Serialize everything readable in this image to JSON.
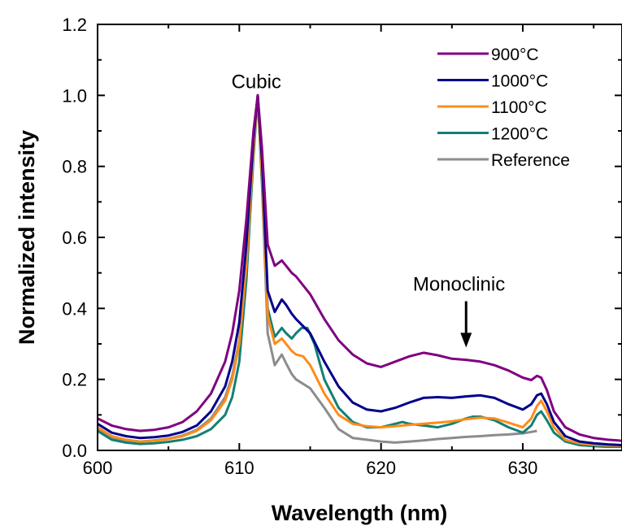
{
  "chart_data": {
    "type": "line",
    "title": "",
    "xlabel": "Wavelength (nm)",
    "ylabel": "Normalized intensity",
    "xlim": [
      600,
      637
    ],
    "ylim": [
      0.0,
      1.2
    ],
    "x_ticks": [
      "600",
      "610",
      "620",
      "630"
    ],
    "y_ticks": [
      "0.0",
      "0.2",
      "0.4",
      "0.6",
      "0.8",
      "1.0",
      "1.2"
    ],
    "grid": false,
    "legend_position": "top-right",
    "annotations": [
      {
        "text": "Cubic",
        "x": 611.2,
        "y": 1.02,
        "arrow": false
      },
      {
        "text": "Monoclinic",
        "x": 625.5,
        "y": 0.45,
        "arrow": true,
        "arrow_to_y": 0.29
      }
    ],
    "series": [
      {
        "name": "900°C",
        "color": "#800080",
        "x": [
          600,
          601,
          602,
          603,
          604,
          605,
          606,
          607,
          608,
          609,
          609.5,
          610,
          610.5,
          611,
          611.3,
          611.6,
          612,
          612.5,
          613,
          613.3,
          613.7,
          614,
          615,
          616,
          617,
          618,
          619,
          620,
          621,
          622,
          623,
          624,
          625,
          626,
          627,
          628,
          629,
          630,
          630.6,
          631,
          631.3,
          631.7,
          632.2,
          633,
          634,
          635,
          636,
          637
        ],
        "y": [
          0.09,
          0.07,
          0.06,
          0.055,
          0.058,
          0.065,
          0.08,
          0.11,
          0.16,
          0.25,
          0.33,
          0.45,
          0.65,
          0.9,
          1.0,
          0.85,
          0.58,
          0.52,
          0.535,
          0.52,
          0.5,
          0.49,
          0.44,
          0.37,
          0.31,
          0.27,
          0.245,
          0.235,
          0.25,
          0.265,
          0.275,
          0.268,
          0.258,
          0.255,
          0.25,
          0.24,
          0.225,
          0.205,
          0.198,
          0.21,
          0.205,
          0.17,
          0.11,
          0.065,
          0.045,
          0.035,
          0.03,
          0.027
        ]
      },
      {
        "name": "1000°C",
        "color": "#00008B",
        "x": [
          600,
          601,
          602,
          603,
          604,
          605,
          606,
          607,
          608,
          609,
          609.5,
          610,
          610.5,
          611,
          611.3,
          611.6,
          612,
          612.5,
          613,
          613.3,
          613.7,
          614,
          615,
          616,
          617,
          618,
          619,
          620,
          621,
          622,
          623,
          624,
          625,
          626,
          627,
          628,
          629,
          630,
          630.6,
          631,
          631.3,
          631.7,
          632.2,
          633,
          634,
          635,
          636,
          637
        ],
        "y": [
          0.075,
          0.05,
          0.04,
          0.035,
          0.037,
          0.042,
          0.052,
          0.07,
          0.11,
          0.18,
          0.25,
          0.36,
          0.58,
          0.88,
          1.0,
          0.82,
          0.45,
          0.39,
          0.425,
          0.41,
          0.385,
          0.37,
          0.33,
          0.25,
          0.18,
          0.135,
          0.115,
          0.11,
          0.12,
          0.135,
          0.148,
          0.15,
          0.148,
          0.152,
          0.155,
          0.148,
          0.13,
          0.115,
          0.13,
          0.155,
          0.16,
          0.13,
          0.08,
          0.04,
          0.025,
          0.02,
          0.017,
          0.015
        ]
      },
      {
        "name": "1100°C",
        "color": "#FF8C1A",
        "x": [
          600,
          601,
          602,
          603,
          604,
          605,
          606,
          607,
          608,
          609,
          609.5,
          610,
          610.5,
          611,
          611.3,
          611.6,
          612,
          612.5,
          613,
          613.3,
          613.7,
          614,
          614.5,
          615,
          616,
          617,
          618,
          619,
          620,
          621,
          622,
          623,
          624,
          625,
          626,
          627,
          628,
          629,
          630,
          630.6,
          631,
          631.3,
          631.7,
          632.2,
          633,
          634,
          635,
          636,
          637
        ],
        "y": [
          0.065,
          0.04,
          0.03,
          0.025,
          0.027,
          0.032,
          0.04,
          0.055,
          0.085,
          0.14,
          0.2,
          0.3,
          0.52,
          0.85,
          1.0,
          0.78,
          0.38,
          0.3,
          0.315,
          0.3,
          0.28,
          0.27,
          0.265,
          0.24,
          0.16,
          0.1,
          0.075,
          0.068,
          0.065,
          0.068,
          0.072,
          0.075,
          0.078,
          0.082,
          0.088,
          0.092,
          0.09,
          0.078,
          0.065,
          0.09,
          0.125,
          0.14,
          0.11,
          0.065,
          0.03,
          0.02,
          0.016,
          0.014,
          0.013
        ]
      },
      {
        "name": "1200°C",
        "color": "#138075",
        "x": [
          600,
          601,
          602,
          603,
          604,
          605,
          606,
          607,
          608,
          609,
          609.5,
          610,
          610.5,
          611,
          611.3,
          611.6,
          612,
          612.5,
          613,
          613.3,
          613.7,
          614,
          614.4,
          614.8,
          615.3,
          616,
          617,
          618,
          619,
          620,
          621,
          621.5,
          622,
          623,
          624,
          625,
          626,
          626.5,
          627,
          628,
          629,
          630,
          630.6,
          631,
          631.3,
          631.7,
          632.2,
          633,
          634,
          635,
          636,
          637
        ],
        "y": [
          0.055,
          0.03,
          0.022,
          0.018,
          0.02,
          0.024,
          0.03,
          0.04,
          0.06,
          0.1,
          0.15,
          0.25,
          0.48,
          0.83,
          1.0,
          0.76,
          0.4,
          0.32,
          0.345,
          0.33,
          0.315,
          0.33,
          0.345,
          0.345,
          0.3,
          0.2,
          0.12,
          0.08,
          0.065,
          0.065,
          0.075,
          0.08,
          0.075,
          0.07,
          0.065,
          0.075,
          0.09,
          0.095,
          0.095,
          0.085,
          0.065,
          0.05,
          0.07,
          0.1,
          0.11,
          0.085,
          0.05,
          0.025,
          0.015,
          0.012,
          0.01,
          0.01
        ]
      },
      {
        "name": "Reference",
        "color": "#8C8C8C",
        "x": [
          600,
          601,
          602,
          603,
          604,
          605,
          606,
          607,
          608,
          609,
          609.5,
          610,
          610.5,
          611,
          611.3,
          611.6,
          612,
          612.5,
          613,
          613.3,
          613.7,
          614,
          615,
          616,
          617,
          618,
          619,
          620,
          621,
          622,
          623,
          624,
          625,
          626,
          627,
          628,
          629,
          630,
          630.6,
          631
        ],
        "y": [
          0.06,
          0.035,
          0.028,
          0.025,
          0.028,
          0.033,
          0.042,
          0.058,
          0.09,
          0.15,
          0.21,
          0.31,
          0.53,
          0.86,
          1.0,
          0.75,
          0.33,
          0.24,
          0.27,
          0.245,
          0.215,
          0.2,
          0.175,
          0.12,
          0.06,
          0.035,
          0.03,
          0.025,
          0.022,
          0.025,
          0.028,
          0.032,
          0.035,
          0.038,
          0.04,
          0.043,
          0.045,
          0.048,
          0.052,
          0.055
        ]
      }
    ]
  }
}
